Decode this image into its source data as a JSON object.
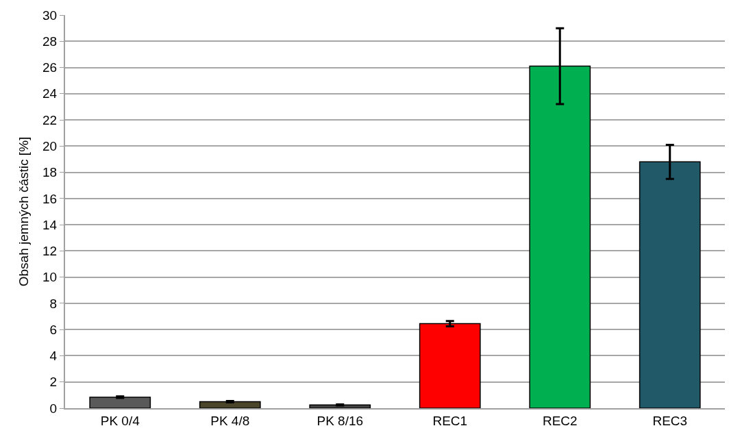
{
  "chart_data": {
    "type": "bar",
    "ylabel": "Obsah jemných částic [%]",
    "categories": [
      "PK 0/4",
      "PK 4/8",
      "PK 8/16",
      "REC1",
      "REC2",
      "REC3"
    ],
    "values": [
      0.84,
      0.5,
      0.25,
      6.45,
      26.1,
      18.8
    ],
    "errors": [
      0.06,
      0.05,
      0.04,
      0.2,
      2.9,
      1.3
    ],
    "colors": [
      "#595959",
      "#4a452a",
      "#404040",
      "#ff0000",
      "#00b050",
      "#215968"
    ],
    "ylim": [
      0,
      30
    ],
    "yticks": [
      0,
      2,
      4,
      6,
      8,
      10,
      12,
      14,
      16,
      18,
      20,
      22,
      24,
      26,
      28,
      30
    ],
    "grid": "y",
    "legend": false
  }
}
